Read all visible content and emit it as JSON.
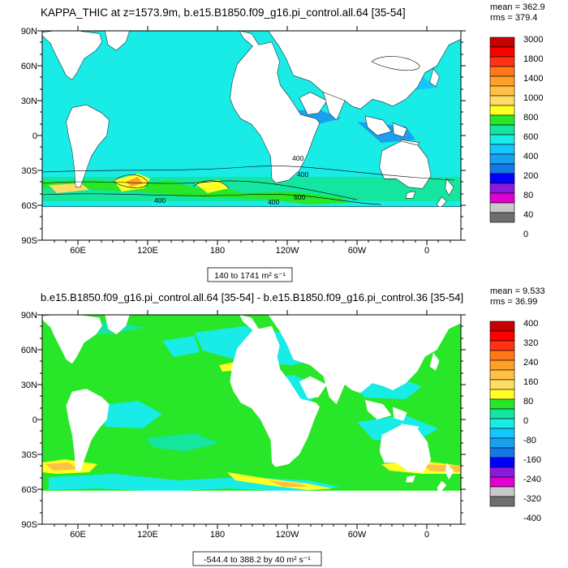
{
  "colors": {
    "c0": "#6e6e6e",
    "c1": "#c8c8c8",
    "c2": "#e000d0",
    "c3": "#8a1adb",
    "c4": "#0000ff",
    "c5": "#1478e6",
    "c6": "#19a0f0",
    "c7": "#14c8ff",
    "c8": "#19ebe6",
    "c9": "#14e6a0",
    "c10": "#28e628",
    "c11": "#ffff28",
    "c12": "#ffdc64",
    "c13": "#ffc046",
    "c14": "#ffa028",
    "c15": "#ff7819",
    "c16": "#ff3214",
    "c17": "#ff0000",
    "c18": "#c80000",
    "land": "#ffffff",
    "frame": "#000000"
  },
  "axes": {
    "lat_labels": [
      "90N",
      "60N",
      "30N",
      "0",
      "30S",
      "60S",
      "90S"
    ],
    "lon_labels": [
      "60E",
      "120E",
      "180",
      "120W",
      "60W",
      "0"
    ]
  },
  "panels": [
    {
      "title": "KAPPA_THIC at z=1573.9m, b.e15.B1850.f09_g16.pi_control.all.64 [35-54]",
      "stats": {
        "mean": "mean = 362.9",
        "rms": "rms = 379.4"
      },
      "range_label": "140 to 1741 m² s⁻¹",
      "colorbar_labels": [
        "3000",
        "1800",
        "1400",
        "1000",
        "800",
        "600",
        "400",
        "200",
        "80",
        "40",
        "0"
      ],
      "contour_labels": [
        "400",
        "400",
        "600",
        "400",
        "400"
      ]
    },
    {
      "title": "b.e15.B1850.f09_g16.pi_control.all.64 [35-54] - b.e15.B1850.f09_g16.pi_control.36 [35-54]",
      "stats": {
        "mean": "mean = 9.533",
        "rms": "rms = 36.99"
      },
      "range_label": "-544.4 to 388.2 by 40 m² s⁻¹",
      "colorbar_labels": [
        "400",
        "320",
        "240",
        "160",
        "80",
        "0",
        "-80",
        "-160",
        "-240",
        "-320",
        "-400"
      ]
    }
  ]
}
